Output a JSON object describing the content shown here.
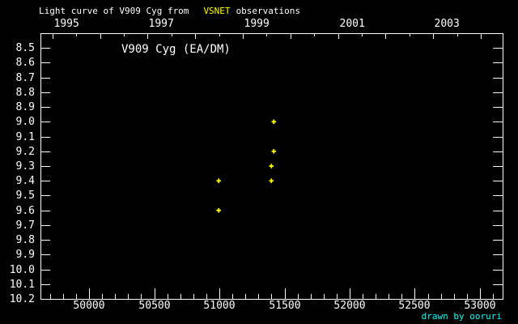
{
  "title": {
    "prefix": "Light curve of V909 Cyg from",
    "highlight": "VSNET",
    "suffix": "observations"
  },
  "watermark": "drawn by ooruri",
  "colors": {
    "background": "#000000",
    "foreground": "#ffffff",
    "title_highlight": "#ffff00",
    "point_color": "#ffff00",
    "watermark_color": "#00ffff"
  },
  "chart_data": {
    "type": "scatter",
    "label": "V909 Cyg (EA/DM)",
    "marker": "plus",
    "x_axis": {
      "unit": "JD-2400000",
      "xlim": [
        49627,
        53174
      ],
      "label_values": [
        50000,
        50500,
        51000,
        51500,
        52000,
        52500,
        53000
      ],
      "minor_step": 100,
      "major_step": 500
    },
    "top_axis": {
      "unit": "year",
      "years_all": [
        1995,
        1996,
        1997,
        1998,
        1999,
        2000,
        2001,
        2002,
        2003,
        2004
      ],
      "labeled_years": [
        1995,
        1997,
        1999,
        2001,
        2003
      ],
      "epoch_jd_1995": 49718.5,
      "days_per_year": 365.25
    },
    "y_axis": {
      "unit": "magnitude",
      "ylim": [
        8.4,
        10.2
      ],
      "inverted_bright_up": true,
      "tick_step": 0.1,
      "tick_labels": [
        "8.5",
        "8.6",
        "8.7",
        "8.8",
        "8.9",
        "9.0",
        "9.1",
        "9.2",
        "9.3",
        "9.4",
        "9.5",
        "9.6",
        "9.7",
        "9.8",
        "9.9",
        "10.0",
        "10.1",
        "10.2"
      ]
    },
    "points": [
      {
        "jd": 50995,
        "mag": 9.4
      },
      {
        "jd": 50995,
        "mag": 9.6
      },
      {
        "jd": 51399,
        "mag": 9.3
      },
      {
        "jd": 51399,
        "mag": 9.4
      },
      {
        "jd": 51418,
        "mag": 9.0
      },
      {
        "jd": 51418,
        "mag": 9.2
      }
    ]
  }
}
